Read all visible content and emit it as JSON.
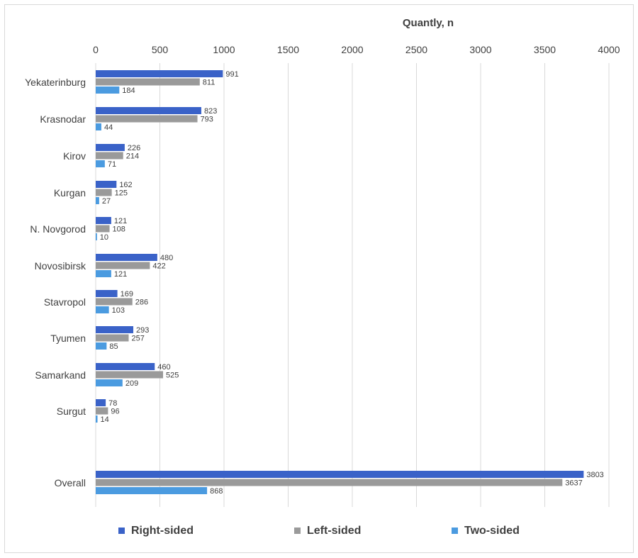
{
  "chart_data": {
    "type": "bar",
    "orientation": "horizontal",
    "xlabel": "Quantly, n",
    "xlim": [
      0,
      4000
    ],
    "xticks": [
      0,
      500,
      1000,
      1500,
      2000,
      2500,
      3000,
      3500,
      4000
    ],
    "grid": "vertical",
    "legend_position": "bottom",
    "categories": [
      "Yekaterinburg",
      "Krasnodar",
      "Kirov",
      "Kurgan",
      "N. Novgorod",
      "Novosibirsk",
      "Stavropol",
      "Tyumen",
      "Samarkand",
      "Surgut",
      "Overall"
    ],
    "series": [
      {
        "name": "Right-sided",
        "color": "#3a62c8",
        "values": [
          991,
          823,
          226,
          162,
          121,
          480,
          169,
          293,
          460,
          78,
          3803
        ]
      },
      {
        "name": "Left-sided",
        "color": "#9a9a9a",
        "values": [
          811,
          793,
          214,
          125,
          108,
          422,
          286,
          257,
          525,
          96,
          3637
        ]
      },
      {
        "name": "Two-sided",
        "color": "#4b9be0",
        "values": [
          184,
          44,
          71,
          27,
          10,
          121,
          103,
          85,
          209,
          14,
          868
        ]
      }
    ]
  }
}
